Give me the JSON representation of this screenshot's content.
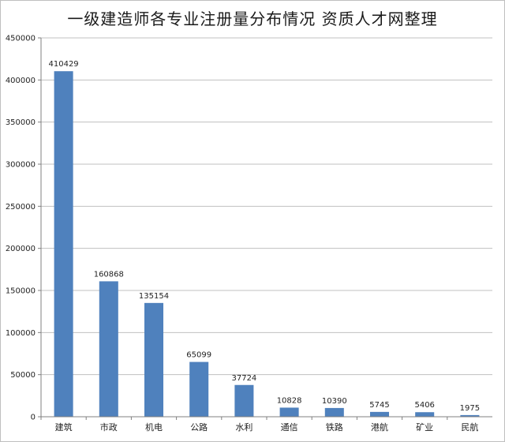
{
  "chart_data": {
    "type": "bar",
    "title": "一级建造师各专业注册量分布情况  资质人才网整理",
    "xlabel": "",
    "ylabel": "",
    "categories": [
      "建筑",
      "市政",
      "机电",
      "公路",
      "水利",
      "通信",
      "铁路",
      "港航",
      "矿业",
      "民航"
    ],
    "values": [
      410429,
      160868,
      135154,
      65099,
      37724,
      10828,
      10390,
      5745,
      5406,
      1975
    ],
    "ylim": [
      0,
      450000
    ],
    "yticks": [
      0,
      50000,
      100000,
      150000,
      200000,
      250000,
      300000,
      350000,
      400000,
      450000
    ],
    "grid": true,
    "legend": "none",
    "bar_color": "#4f81bd",
    "grid_color": "#c0c0c0"
  }
}
